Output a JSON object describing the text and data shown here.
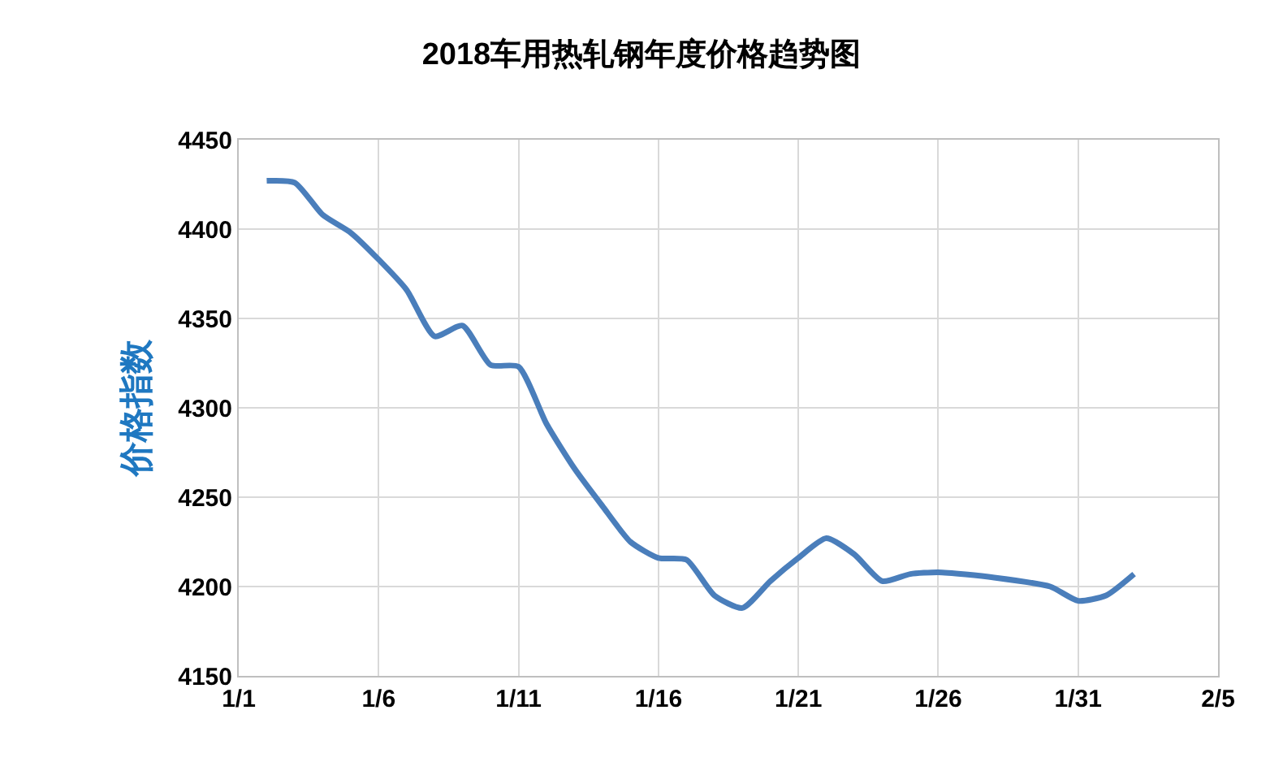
{
  "chart_data": {
    "type": "line",
    "title": "2018车用热轧钢年度价格趋势图",
    "ylabel": "价格指数",
    "x": [
      "--01-02",
      "--01-03",
      "--01-04",
      "--01-05",
      "--01-06",
      "--01-07",
      "--01-08",
      "--01-09",
      "--01-10",
      "--01-11",
      "--01-12",
      "--01-13",
      "--01-14",
      "--01-15",
      "--01-16",
      "--01-17",
      "--01-18",
      "--01-19",
      "--01-20",
      "--01-21",
      "--01-22",
      "--01-23",
      "--01-24",
      "--01-25",
      "--01-26",
      "--01-28",
      "--01-30",
      "--01-31",
      "--02-01",
      "--02-02"
    ],
    "series": [
      {
        "color": "#4a7ebb",
        "values": [
          4427,
          4426,
          4408,
          4398,
          4383,
          4366,
          4340,
          4346,
          4324,
          4323,
          4291,
          4266,
          4245,
          4225,
          4216,
          4215,
          4195,
          4188,
          4203,
          4216,
          4227,
          4218,
          4203,
          4207,
          4208,
          4205,
          4200,
          4192,
          4195,
          4207
        ]
      }
    ],
    "xlim": [
      "--01-01",
      "--02-05"
    ],
    "xticks": [
      {
        "value": "--01-01",
        "label": "1/1"
      },
      {
        "value": "--01-06",
        "label": "1/6"
      },
      {
        "value": "--01-11",
        "label": "1/11"
      },
      {
        "value": "--01-16",
        "label": "1/16"
      },
      {
        "value": "--01-21",
        "label": "1/21"
      },
      {
        "value": "--01-26",
        "label": "1/26"
      },
      {
        "value": "--01-31",
        "label": "1/31"
      },
      {
        "value": "--02-05",
        "label": "2/5"
      }
    ],
    "ylim": [
      4150,
      4450
    ],
    "yticks": [
      4150,
      4200,
      4250,
      4300,
      4350,
      4400,
      4450
    ],
    "grid": true,
    "marker": "none",
    "line_style": "solid"
  }
}
